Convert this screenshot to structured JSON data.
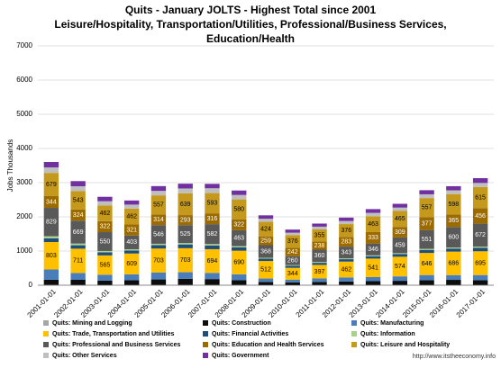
{
  "chart_data": {
    "type": "stacked_bar",
    "title": [
      "Quits - January JOLTS - Highest Total since 2001",
      "Leisure/Hospitality, Transportation/Utilities, Professional/Business Services,",
      "Education/Health"
    ],
    "y_label": "Jobs Thousands",
    "categories": [
      "2001-01-01",
      "2002-01-01",
      "2003-01-01",
      "2004-01-01",
      "2005-01-01",
      "2006-01-01",
      "2007-01-01",
      "2008-01-01",
      "2009-01-01",
      "2010-01-01",
      "2011-01-01",
      "2012-01-01",
      "2013-01-01",
      "2014-01-01",
      "2015-01-01",
      "2016-01-01",
      "2017-01-01"
    ],
    "ylim": [
      0,
      7000
    ],
    "yticks": [
      0,
      1000,
      2000,
      3000,
      4000,
      5000,
      6000,
      7000
    ],
    "grid": true,
    "series": [
      {
        "name": "Quits: Mining and Logging",
        "color": "#a6a6a6",
        "values": [
          10,
          8,
          7,
          8,
          9,
          10,
          10,
          10,
          6,
          5,
          8,
          9,
          8,
          9,
          8,
          7,
          8
        ]
      },
      {
        "name": "Quits: Construction",
        "color": "#0d0d0d",
        "values": [
          150,
          150,
          130,
          140,
          160,
          180,
          170,
          140,
          90,
          80,
          90,
          100,
          110,
          120,
          140,
          150,
          140
        ]
      },
      {
        "name": "Quits: Manufacturing",
        "color": "#4a7ebb",
        "values": [
          300,
          200,
          170,
          170,
          200,
          190,
          180,
          170,
          100,
          80,
          100,
          120,
          120,
          130,
          150,
          140,
          150
        ]
      },
      {
        "name": "Quits: Trade, Transportation and Utilities",
        "color": "#ffc000",
        "labels": true,
        "values": [
          803,
          711,
          565,
          609,
          703,
          703,
          694,
          690,
          512,
          344,
          397,
          462,
          541,
          574,
          646,
          686,
          695
        ]
      },
      {
        "name": "Quits: Financial Activities",
        "color": "#1f4e79",
        "values": [
          110,
          100,
          90,
          90,
          100,
          110,
          110,
          100,
          70,
          60,
          60,
          70,
          70,
          80,
          90,
          90,
          100
        ]
      },
      {
        "name": "Quits: Information",
        "color": "#a9d18e",
        "values": [
          60,
          50,
          40,
          35,
          40,
          40,
          40,
          35,
          25,
          20,
          25,
          25,
          25,
          25,
          30,
          30,
          35
        ]
      },
      {
        "name": "Quits: Professional and Business Services",
        "color": "#595959",
        "labels": true,
        "values": [
          829,
          669,
          550,
          403,
          546,
          525,
          582,
          463,
          368,
          260,
          360,
          343,
          346,
          459,
          551,
          600,
          672
        ]
      },
      {
        "name": "Quits: Education and Health Services",
        "color": "#9c6b00",
        "labels": true,
        "values": [
          344,
          324,
          322,
          321,
          314,
          293,
          316,
          322,
          259,
          242,
          238,
          283,
          333,
          309,
          377,
          365,
          456
        ]
      },
      {
        "name": "Quits: Leisure and Hospitality",
        "color": "#c59a1c",
        "labels": true,
        "values": [
          679,
          543,
          462,
          462,
          557,
          639,
          593,
          580,
          424,
          376,
          355,
          376,
          463,
          465,
          557,
          598,
          615
        ]
      },
      {
        "name": "Quits: Other Services",
        "color": "#bfbfbf",
        "values": [
          160,
          140,
          120,
          120,
          130,
          140,
          140,
          130,
          90,
          70,
          80,
          90,
          100,
          100,
          110,
          110,
          120
        ]
      },
      {
        "name": "Quits: Government",
        "color": "#7030a0",
        "values": [
          160,
          150,
          130,
          120,
          140,
          140,
          130,
          130,
          100,
          90,
          90,
          100,
          110,
          110,
          120,
          120,
          140
        ]
      }
    ],
    "source": "http://www.itstheeconomy.info"
  }
}
